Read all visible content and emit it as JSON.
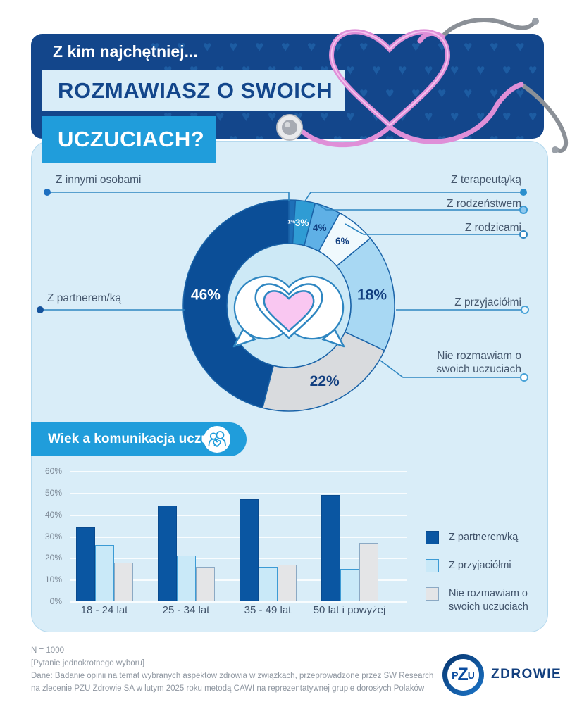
{
  "header": {
    "intro": "Z kim najchętniej...",
    "line2": "ROZMAWIASZ O SWOICH",
    "line3": "UCZUCIACH?"
  },
  "banner": {
    "title": "Wiek a komunikacja uczuć"
  },
  "chart_data": [
    {
      "type": "pie",
      "subtype": "donut",
      "title": "Z kim najchętniej rozmawiasz o swoich uczuciach?",
      "slices": [
        {
          "label": "Z innymi osobami",
          "value": 1,
          "color": "#1e70b8",
          "text_color": "#ffffff"
        },
        {
          "label": "Z terapeutą/ką",
          "value": 3,
          "color": "#2f9cd4",
          "text_color": "#ffffff"
        },
        {
          "label": "Z rodzeństwem",
          "value": 4,
          "color": "#5fb0e6",
          "text_color": "#123f80"
        },
        {
          "label": "Z rodzicami",
          "value": 6,
          "color": "#f0f9fd",
          "text_color": "#123f80"
        },
        {
          "label": "Z przyjaciółmi",
          "value": 18,
          "color": "#a8d8f3",
          "text_color": "#123f80"
        },
        {
          "label": "Nie rozmawiam o swoich uczuciach",
          "value": 22,
          "color": "#d9dbde",
          "text_color": "#123f80"
        },
        {
          "label": "Z partnerem/ką",
          "value": 46,
          "color": "#0b4e97",
          "text_color": "#ffffff"
        }
      ]
    },
    {
      "type": "bar",
      "title": "Wiek a komunikacja uczuć",
      "categories": [
        "18 - 24 lat",
        "25 - 34 lat",
        "35 - 49 lat",
        "50 lat i powyżej"
      ],
      "series": [
        {
          "name": "Z partnerem/ką",
          "color": "#0a56a2",
          "values": [
            34,
            44,
            47,
            49
          ]
        },
        {
          "name": "Z przyjaciółmi",
          "color": "#c9e9f8",
          "values": [
            26,
            21,
            16,
            15
          ]
        },
        {
          "name": "Nie rozmawiam o swoich uczuciach",
          "color": "#e4e5e7",
          "values": [
            18,
            16,
            17,
            27
          ]
        }
      ],
      "ylim": [
        0,
        60
      ],
      "tick_step": 10,
      "tick_suffix": "%",
      "grid": true,
      "legend_position": "right"
    }
  ],
  "footer": {
    "n": "N = 1000",
    "note": "[Pytanie jednokrotnego wyboru]",
    "source_line1": "Dane: Badanie opinii na temat wybranych aspektów zdrowia w związkach, przeprowadzone przez SW Research",
    "source_line2": "na zlecenie PZU Zdrowie SA w lutym 2025 roku metodą CAWI na reprezentatywnej grupie dorosłych Polaków",
    "logo": {
      "l1": "P",
      "l2": "Z",
      "l3": "U",
      "brand": "ZDROWIE"
    }
  }
}
